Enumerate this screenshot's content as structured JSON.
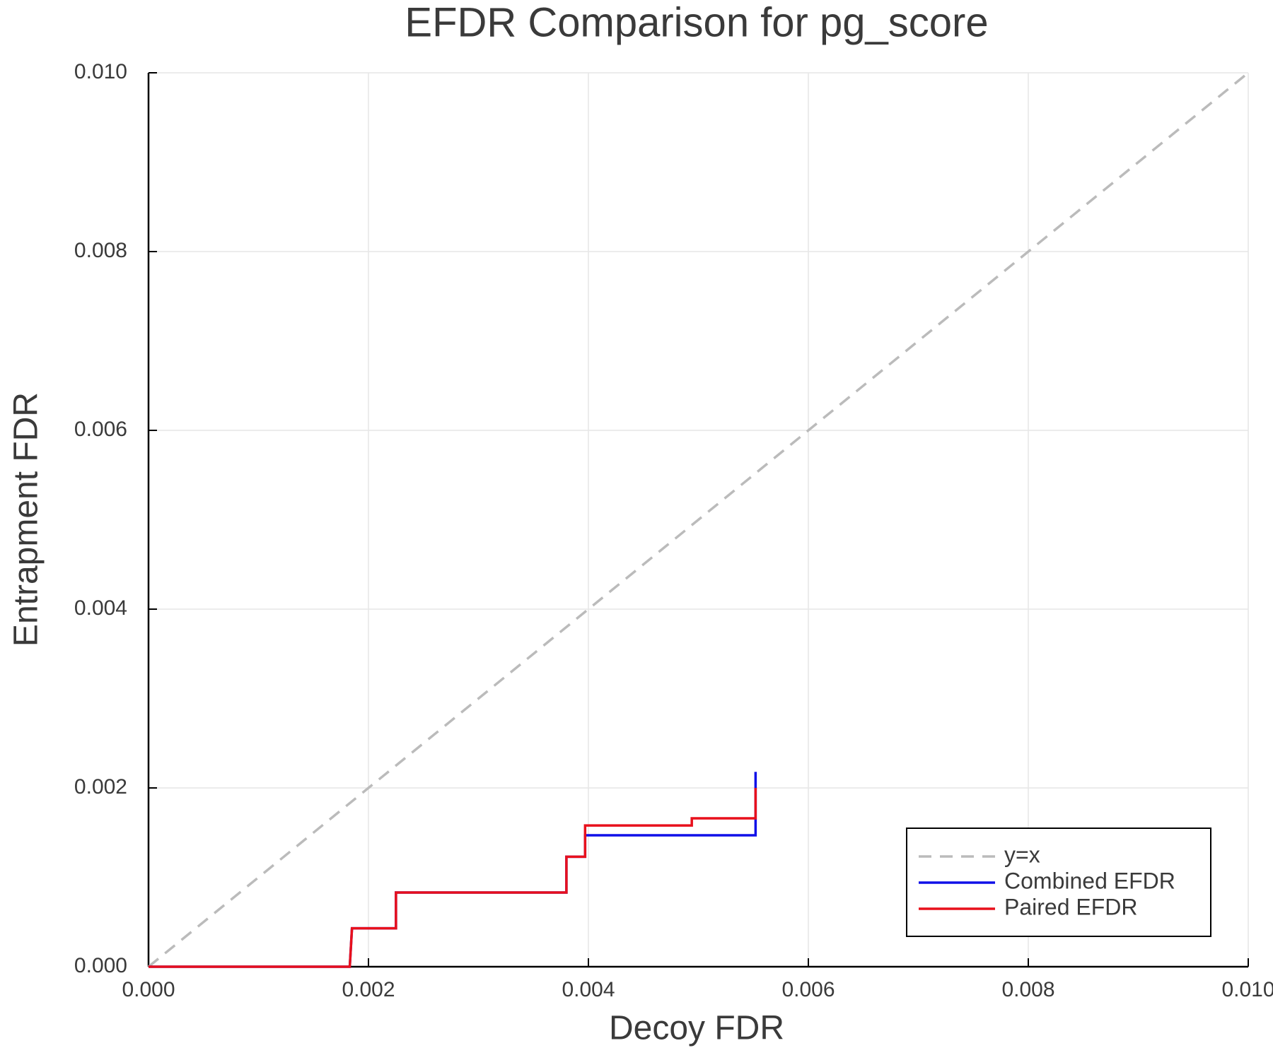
{
  "chart_data": {
    "type": "line",
    "title": "EFDR Comparison for pg_score",
    "x_label": "Decoy FDR",
    "y_label": "Entrapment FDR",
    "xlim": [
      0,
      0.01
    ],
    "ylim": [
      0,
      0.01
    ],
    "xticks": [
      {
        "value": 0,
        "label": "0.000"
      },
      {
        "value": 0.002,
        "label": "0.002"
      },
      {
        "value": 0.004,
        "label": "0.004"
      },
      {
        "value": 0.006,
        "label": "0.006"
      },
      {
        "value": 0.008,
        "label": "0.008"
      },
      {
        "value": 0.01,
        "label": "0.010"
      }
    ],
    "yticks": [
      {
        "value": 0,
        "label": "0.000"
      },
      {
        "value": 0.002,
        "label": "0.002"
      },
      {
        "value": 0.004,
        "label": "0.004"
      },
      {
        "value": 0.006,
        "label": "0.006"
      },
      {
        "value": 0.008,
        "label": "0.008"
      },
      {
        "value": 0.01,
        "label": "0.010"
      }
    ],
    "grid": true,
    "legend_position": "bottom-right",
    "series": [
      {
        "name": "y=x",
        "color": "#bbbbbb",
        "line_style": "dashed",
        "x": [
          0,
          0.01
        ],
        "values": [
          0,
          0.01
        ]
      },
      {
        "name": "Combined EFDR",
        "color": "#1010e8",
        "line_style": "solid",
        "x": [
          0,
          0.00183,
          0.00185,
          0.00225,
          0.00225,
          0.0038,
          0.0038,
          0.00397,
          0.00397,
          0.00552,
          0.00552
        ],
        "values": [
          0,
          0,
          0.00043,
          0.00043,
          0.00083,
          0.00083,
          0.00123,
          0.00123,
          0.00147,
          0.00147,
          0.00218
        ]
      },
      {
        "name": "Paired EFDR",
        "color": "#e8101c",
        "line_style": "solid",
        "x": [
          0,
          0.00183,
          0.00185,
          0.00225,
          0.00225,
          0.0038,
          0.0038,
          0.00397,
          0.00397,
          0.00494,
          0.00494,
          0.00552,
          0.00552
        ],
        "values": [
          0,
          0,
          0.00043,
          0.00043,
          0.00083,
          0.00083,
          0.00123,
          0.00123,
          0.00158,
          0.00158,
          0.00166,
          0.00166,
          0.002
        ]
      }
    ]
  }
}
